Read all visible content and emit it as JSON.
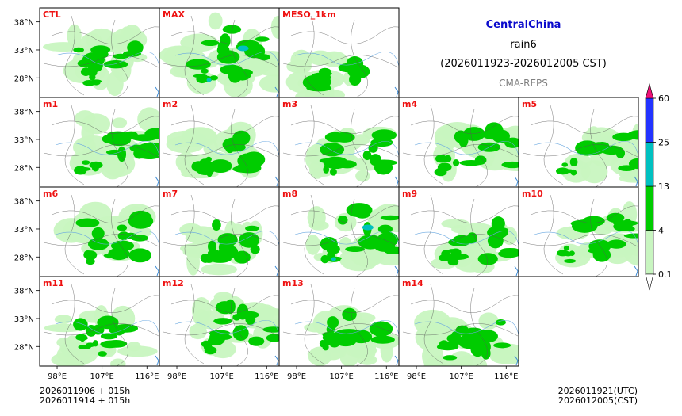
{
  "titles": {
    "region": "CentralChina",
    "variable": "rain6",
    "period": "(2026011923-2026012005 CST)",
    "model": "CMA-REPS"
  },
  "footer": {
    "left_line1": "2026011906  +  015h",
    "left_line2": "2026011914  +  015h",
    "right_line1": "2026011921(UTC)",
    "right_line2": "2026012005(CST)"
  },
  "chart_data": {
    "type": "heatmap",
    "title": "CentralChina rain6 (2026011923-2026012005 CST)",
    "xlabel": "",
    "ylabel": "",
    "xticks": [
      "98°E",
      "107°E",
      "116°E"
    ],
    "xtick_values": [
      98,
      107,
      116
    ],
    "yticks": [
      "38°N",
      "33°N",
      "28°N"
    ],
    "ytick_values": [
      38,
      33,
      28
    ],
    "xlim": [
      94.5,
      118.5
    ],
    "ylim": [
      24.5,
      40.5
    ],
    "colorbar": {
      "levels": [
        "0.1",
        "4",
        "13",
        "25",
        "60"
      ],
      "colors": [
        "#ffffff",
        "#c8f5c0",
        "#00cc00",
        "#00c0c0",
        "#2233ff",
        "#ee1177"
      ],
      "extend": "both"
    },
    "panels": [
      {
        "label": "CTL",
        "row": 0,
        "col": 0,
        "coverage": 0.45,
        "max_class": 2,
        "core_lon": 108,
        "core_lat": 32
      },
      {
        "label": "MAX",
        "row": 0,
        "col": 1,
        "coverage": 0.85,
        "max_class": 3,
        "core_lon": 110,
        "core_lat": 33
      },
      {
        "label": "MESO_1km",
        "row": 0,
        "col": 2,
        "coverage": 0.3,
        "max_class": 2,
        "core_lon": 106,
        "core_lat": 29
      },
      {
        "label": "m1",
        "row": 1,
        "col": 0,
        "coverage": 0.55,
        "max_class": 2,
        "core_lon": 113,
        "core_lat": 33
      },
      {
        "label": "m2",
        "row": 1,
        "col": 1,
        "coverage": 0.45,
        "max_class": 2,
        "core_lon": 108,
        "core_lat": 31
      },
      {
        "label": "m3",
        "row": 1,
        "col": 2,
        "coverage": 0.4,
        "max_class": 2,
        "core_lon": 110,
        "core_lat": 31
      },
      {
        "label": "m4",
        "row": 1,
        "col": 3,
        "coverage": 0.45,
        "max_class": 2,
        "core_lon": 112,
        "core_lat": 32
      },
      {
        "label": "m5",
        "row": 1,
        "col": 4,
        "coverage": 0.45,
        "max_class": 2,
        "core_lon": 114,
        "core_lat": 31
      },
      {
        "label": "m6",
        "row": 2,
        "col": 0,
        "coverage": 0.5,
        "max_class": 2,
        "core_lon": 109,
        "core_lat": 32
      },
      {
        "label": "m7",
        "row": 2,
        "col": 1,
        "coverage": 0.45,
        "max_class": 2,
        "core_lon": 109,
        "core_lat": 31
      },
      {
        "label": "m8",
        "row": 2,
        "col": 2,
        "coverage": 0.6,
        "max_class": 3,
        "core_lon": 111,
        "core_lat": 33
      },
      {
        "label": "m9",
        "row": 2,
        "col": 3,
        "coverage": 0.45,
        "max_class": 2,
        "core_lon": 111,
        "core_lat": 31
      },
      {
        "label": "m10",
        "row": 2,
        "col": 4,
        "coverage": 0.5,
        "max_class": 2,
        "core_lon": 113,
        "core_lat": 32
      },
      {
        "label": "m11",
        "row": 3,
        "col": 0,
        "coverage": 0.45,
        "max_class": 2,
        "core_lon": 108,
        "core_lat": 30
      },
      {
        "label": "m12",
        "row": 3,
        "col": 1,
        "coverage": 0.6,
        "max_class": 2,
        "core_lon": 111,
        "core_lat": 33
      },
      {
        "label": "m13",
        "row": 3,
        "col": 2,
        "coverage": 0.5,
        "max_class": 2,
        "core_lon": 110,
        "core_lat": 31
      },
      {
        "label": "m14",
        "row": 3,
        "col": 3,
        "coverage": 0.55,
        "max_class": 2,
        "core_lon": 110,
        "core_lat": 30
      }
    ]
  }
}
